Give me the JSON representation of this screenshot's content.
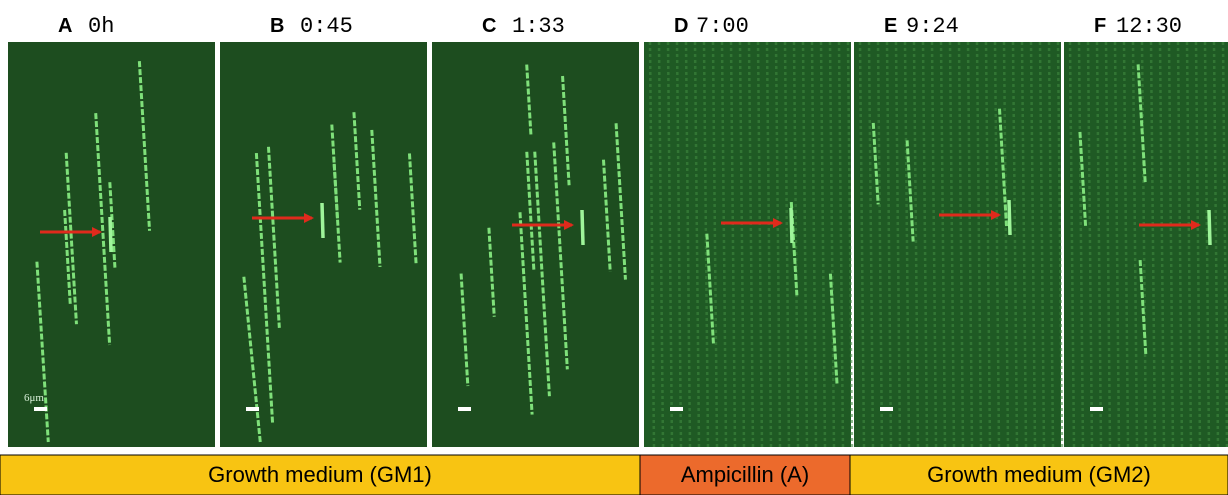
{
  "panels": [
    {
      "letter": "A",
      "time": "0h"
    },
    {
      "letter": "B",
      "time": "0:45"
    },
    {
      "letter": "C",
      "time": "1:33"
    },
    {
      "letter": "D",
      "time": "7:00"
    },
    {
      "letter": "E",
      "time": "9:24"
    },
    {
      "letter": "F",
      "time": "12:30"
    }
  ],
  "scale_label": "6μm",
  "media": [
    {
      "label": "Growth medium (GM1)"
    },
    {
      "label": "Ampicillin (A)"
    },
    {
      "label": "Growth medium (GM2)"
    }
  ]
}
